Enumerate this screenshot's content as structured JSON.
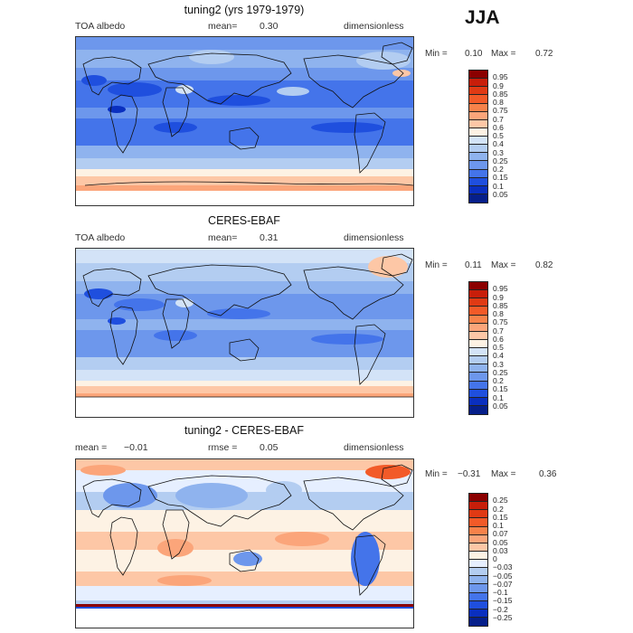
{
  "season": "JJA",
  "panels": [
    {
      "title": "tuning2 (yrs 1979-1979)",
      "field_label": "TOA albedo",
      "stat_label": "mean=",
      "stat_value": "0.30",
      "units": "dimensionless",
      "min_label": "Min =",
      "min_value": "0.10",
      "max_label": "Max =",
      "max_value": "0.72",
      "levels": [
        "0.95",
        "0.9",
        "0.85",
        "0.8",
        "0.75",
        "0.7",
        "0.6",
        "0.5",
        "0.4",
        "0.3",
        "0.25",
        "0.2",
        "0.15",
        "0.1",
        "0.05"
      ],
      "colors": [
        "#8b0000",
        "#c81e0a",
        "#e03a14",
        "#f25a28",
        "#f7824a",
        "#fba57a",
        "#fdc7a6",
        "#fdf2e4",
        "#d3e3f7",
        "#b3cdf1",
        "#8fb3ee",
        "#6d97ec",
        "#4474ea",
        "#1f4fde",
        "#0a2fbf",
        "#061f8a"
      ]
    },
    {
      "title": "CERES-EBAF",
      "field_label": "TOA albedo",
      "stat_label": "mean=",
      "stat_value": "0.31",
      "units": "dimensionless",
      "min_label": "Min =",
      "min_value": "0.11",
      "max_label": "Max =",
      "max_value": "0.82",
      "levels": [
        "0.95",
        "0.9",
        "0.85",
        "0.8",
        "0.75",
        "0.7",
        "0.6",
        "0.5",
        "0.4",
        "0.3",
        "0.25",
        "0.2",
        "0.15",
        "0.1",
        "0.05"
      ],
      "colors": [
        "#8b0000",
        "#c81e0a",
        "#e03a14",
        "#f25a28",
        "#f7824a",
        "#fba57a",
        "#fdc7a6",
        "#fdf2e4",
        "#d3e3f7",
        "#b3cdf1",
        "#8fb3ee",
        "#6d97ec",
        "#4474ea",
        "#1f4fde",
        "#0a2fbf",
        "#061f8a"
      ]
    },
    {
      "title": "tuning2 - CERES-EBAF",
      "field_label": "mean =",
      "stat_label": "rmse =",
      "field_value": "−0.01",
      "stat_value": "0.05",
      "units": "dimensionless",
      "min_label": "Min =",
      "min_value": "−0.31",
      "max_label": "Max =",
      "max_value": "0.36",
      "levels": [
        "0.25",
        "0.2",
        "0.15",
        "0.1",
        "0.07",
        "0.05",
        "0.03",
        "0",
        "−0.03",
        "−0.05",
        "−0.07",
        "−0.1",
        "−0.15",
        "−0.2",
        "−0.25"
      ],
      "colors": [
        "#8b0000",
        "#c81e0a",
        "#e03a14",
        "#f25a28",
        "#f7824a",
        "#fba57a",
        "#fdc7a6",
        "#fdf2e4",
        "#e6efff",
        "#b3cdf1",
        "#8fb3ee",
        "#6d97ec",
        "#4474ea",
        "#1f4fde",
        "#0a2fbf",
        "#061f8a"
      ]
    }
  ],
  "chart_data": [
    {
      "type": "heatmap",
      "title": "tuning2 (yrs 1979-1979)",
      "variable": "TOA albedo",
      "mean": 0.3,
      "min": 0.1,
      "max": 0.72,
      "units": "dimensionless",
      "contour_levels": [
        0.05,
        0.1,
        0.15,
        0.2,
        0.25,
        0.3,
        0.4,
        0.5,
        0.6,
        0.7,
        0.75,
        0.8,
        0.85,
        0.9,
        0.95
      ]
    },
    {
      "type": "heatmap",
      "title": "CERES-EBAF",
      "variable": "TOA albedo",
      "mean": 0.31,
      "min": 0.11,
      "max": 0.82,
      "units": "dimensionless",
      "contour_levels": [
        0.05,
        0.1,
        0.15,
        0.2,
        0.25,
        0.3,
        0.4,
        0.5,
        0.6,
        0.7,
        0.75,
        0.8,
        0.85,
        0.9,
        0.95
      ]
    },
    {
      "type": "heatmap",
      "title": "tuning2 - CERES-EBAF",
      "mean": -0.01,
      "rmse": 0.05,
      "min": -0.31,
      "max": 0.36,
      "units": "dimensionless",
      "contour_levels": [
        -0.25,
        -0.2,
        -0.15,
        -0.1,
        -0.07,
        -0.05,
        -0.03,
        0,
        0.03,
        0.05,
        0.07,
        0.1,
        0.15,
        0.2,
        0.25
      ]
    }
  ]
}
